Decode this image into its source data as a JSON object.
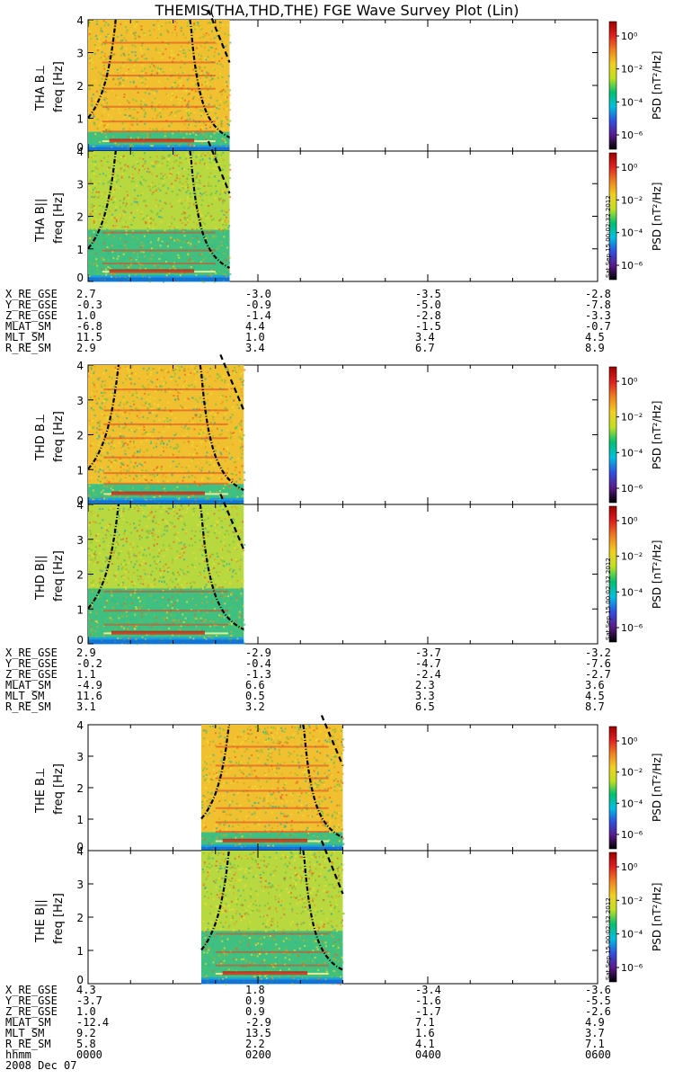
{
  "figure": {
    "title": "THEMIS(THA,THD,THE) FGE Wave Survey Plot (Lin)",
    "colorbar_label": "PSD [nT²/Hz]",
    "colorbar_ticks": [
      "10⁰",
      "10⁻²",
      "10⁻⁴",
      "10⁻⁶"
    ],
    "stamp": "Sat Sep 15 00:02:32 2012",
    "colors": {
      "colormap": [
        "#000000",
        "#5a1a8a",
        "#3050e0",
        "#00c0e0",
        "#00c070",
        "#c0e020",
        "#f0d020",
        "#f08020",
        "#e02020",
        "#a00000"
      ],
      "noise_low": "#1aa0e0",
      "noise_mid": "#40c080",
      "noise_high": "#f0c030",
      "band": "#e04020",
      "curve": "#000000"
    }
  },
  "chart_data": [
    {
      "type": "heatmap",
      "probe": "THA",
      "component": "THA B⊥",
      "ylabel": "freq [Hz]",
      "ylim": [
        0,
        4
      ],
      "yticks": [
        "0",
        "1",
        "2",
        "3",
        "4"
      ],
      "data_range_hhmm": [
        "0000",
        "0140"
      ],
      "intensity": "high"
    },
    {
      "type": "heatmap",
      "probe": "THA",
      "component": "THA B||",
      "ylabel": "freq [Hz]",
      "ylim": [
        0,
        4
      ],
      "yticks": [
        "0",
        "1",
        "2",
        "3",
        "4"
      ],
      "data_range_hhmm": [
        "0000",
        "0140"
      ],
      "intensity": "medium"
    },
    {
      "type": "heatmap",
      "probe": "THD",
      "component": "THD B⊥",
      "ylabel": "freq [Hz]",
      "ylim": [
        0,
        4
      ],
      "yticks": [
        "0",
        "1",
        "2",
        "3",
        "4"
      ],
      "data_range_hhmm": [
        "0000",
        "0150"
      ],
      "intensity": "high"
    },
    {
      "type": "heatmap",
      "probe": "THD",
      "component": "THD B||",
      "ylabel": "freq [Hz]",
      "ylim": [
        0,
        4
      ],
      "yticks": [
        "0",
        "1",
        "2",
        "3",
        "4"
      ],
      "data_range_hhmm": [
        "0000",
        "0150"
      ],
      "intensity": "medium"
    },
    {
      "type": "heatmap",
      "probe": "THE",
      "component": "THE B⊥",
      "ylabel": "freq [Hz]",
      "ylim": [
        0,
        4
      ],
      "yticks": [
        "0",
        "1",
        "2",
        "3",
        "4"
      ],
      "data_range_hhmm": [
        "0120",
        "0300"
      ],
      "intensity": "high"
    },
    {
      "type": "heatmap",
      "probe": "THE",
      "component": "THE B||",
      "ylabel": "freq [Hz]",
      "ylim": [
        0,
        4
      ],
      "yticks": [
        "0",
        "1",
        "2",
        "3",
        "4"
      ],
      "data_range_hhmm": [
        "0120",
        "0300"
      ],
      "intensity": "medium"
    }
  ],
  "ephemeris": [
    {
      "rows": [
        {
          "name": "X_RE_GSE",
          "values": [
            "2.7",
            "-3.0",
            "-3.5",
            "-2.8"
          ]
        },
        {
          "name": "Y_RE_GSE",
          "values": [
            "-0.3",
            "-0.9",
            "-5.0",
            "-7.8"
          ]
        },
        {
          "name": "Z_RE_GSE",
          "values": [
            "1.0",
            "-1.4",
            "-2.8",
            "-3.3"
          ]
        },
        {
          "name": "MLAT_SM",
          "values": [
            "-6.8",
            "4.4",
            "-1.5",
            "-0.7"
          ]
        },
        {
          "name": "MLT_SM",
          "values": [
            "11.5",
            "1.0",
            "3.4",
            "4.5"
          ]
        },
        {
          "name": "R_RE_SM",
          "values": [
            "2.9",
            "3.4",
            "6.7",
            "8.9"
          ]
        }
      ]
    },
    {
      "rows": [
        {
          "name": "X_RE_GSE",
          "values": [
            "2.9",
            "-2.9",
            "-3.7",
            "-3.2"
          ]
        },
        {
          "name": "Y_RE_GSE",
          "values": [
            "-0.2",
            "-0.4",
            "-4.7",
            "-7.6"
          ]
        },
        {
          "name": "Z_RE_GSE",
          "values": [
            "1.1",
            "-1.3",
            "-2.4",
            "-2.7"
          ]
        },
        {
          "name": "MLAT_SM",
          "values": [
            "-4.9",
            "6.6",
            "2.3",
            "3.6"
          ]
        },
        {
          "name": "MLT_SM",
          "values": [
            "11.6",
            "0.5",
            "3.3",
            "4.5"
          ]
        },
        {
          "name": "R_RE_SM",
          "values": [
            "3.1",
            "3.2",
            "6.5",
            "8.7"
          ]
        }
      ]
    },
    {
      "rows": [
        {
          "name": "X_RE_GSE",
          "values": [
            "4.3",
            "1.8",
            "-3.4",
            "-3.6"
          ]
        },
        {
          "name": "Y_RE_GSE",
          "values": [
            "-3.7",
            "0.9",
            "-1.6",
            "-5.5"
          ]
        },
        {
          "name": "Z_RE_GSE",
          "values": [
            "1.0",
            "0.9",
            "-1.7",
            "-2.6"
          ]
        },
        {
          "name": "MLAT_SM",
          "values": [
            "-12.4",
            "-2.9",
            "7.1",
            "4.9"
          ]
        },
        {
          "name": "MLT_SM",
          "values": [
            "9.2",
            "13.5",
            "1.6",
            "3.7"
          ]
        },
        {
          "name": "R_RE_SM",
          "values": [
            "5.8",
            "2.2",
            "4.1",
            "7.1"
          ]
        },
        {
          "name": "hhmm",
          "values": [
            "0000",
            "0200",
            "0400",
            "0600"
          ]
        }
      ]
    }
  ],
  "date_label": "2008 Dec 07"
}
